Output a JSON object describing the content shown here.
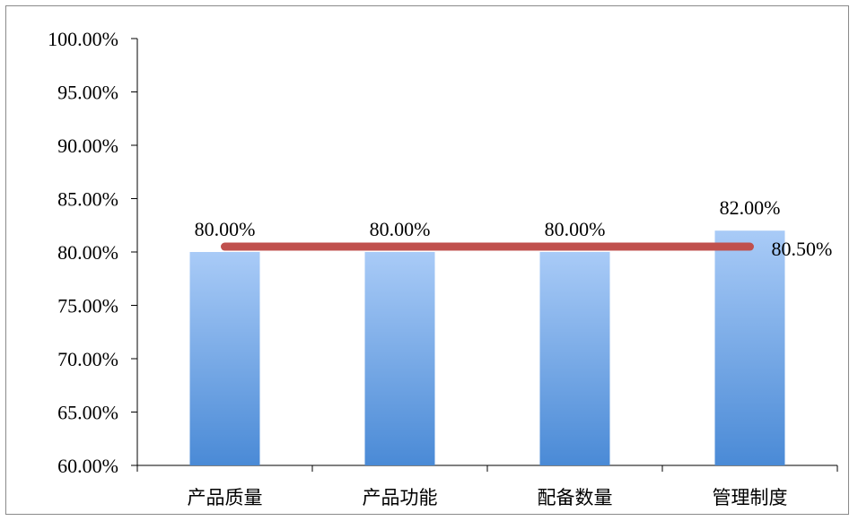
{
  "chart_data": {
    "type": "bar",
    "categories": [
      "产品质量",
      "产品功能",
      "配备数量",
      "管理制度"
    ],
    "series": [
      {
        "type": "bar",
        "values": [
          80.0,
          80.0,
          80.0,
          82.0
        ],
        "labels": [
          "80.00%",
          "80.00%",
          "80.00%",
          "82.00%"
        ],
        "color": "#4a8ad6"
      },
      {
        "type": "line",
        "values": [
          80.5,
          80.5,
          80.5,
          80.5
        ],
        "end_label": "80.50%",
        "color": "#c0504d"
      }
    ],
    "title": "",
    "xlabel": "",
    "ylabel": "",
    "ylim": [
      60,
      100
    ],
    "yticks": [
      60,
      65,
      70,
      75,
      80,
      85,
      90,
      95,
      100
    ],
    "ytick_labels": [
      "60.00%",
      "65.00%",
      "70.00%",
      "75.00%",
      "80.00%",
      "85.00%",
      "90.00%",
      "95.00%",
      "100.00%"
    ],
    "grid": false,
    "legend": "none"
  }
}
